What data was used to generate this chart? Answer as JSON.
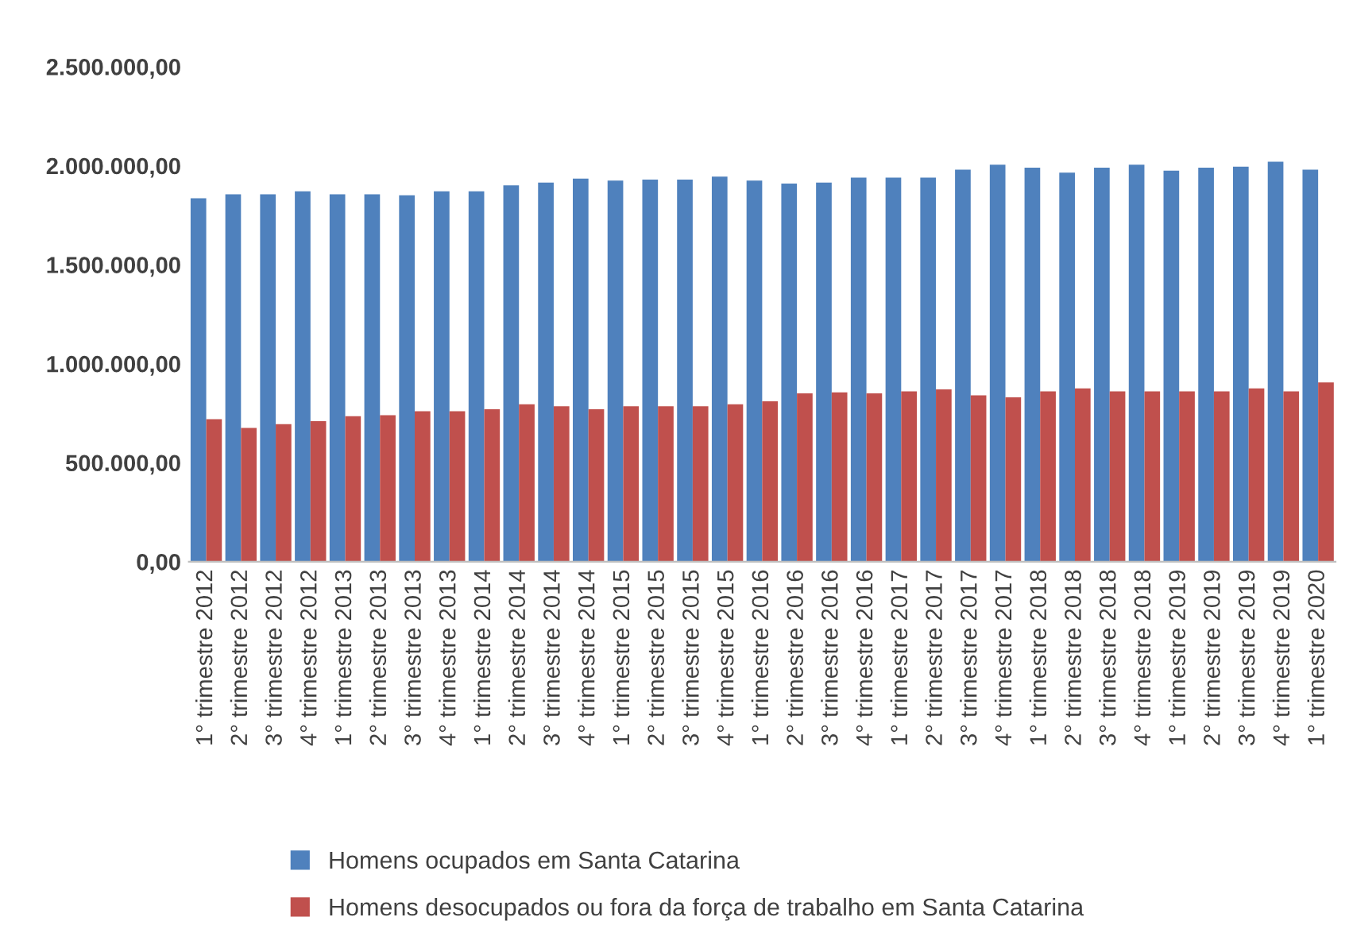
{
  "chart_data": {
    "type": "bar",
    "categories": [
      "1° trimestre 2012",
      "2° trimestre 2012",
      "3° trimestre 2012",
      "4° trimestre 2012",
      "1° trimestre 2013",
      "2° trimestre 2013",
      "3° trimestre 2013",
      "4° trimestre 2013",
      "1° trimestre 2014",
      "2° trimestre 2014",
      "3° trimestre 2014",
      "4° trimestre 2014",
      "1° trimestre 2015",
      "2° trimestre 2015",
      "3° trimestre 2015",
      "4° trimestre 2015",
      "1° trimestre 2016",
      "2° trimestre 2016",
      "3° trimestre 2016",
      "4° trimestre 2016",
      "1° trimestre 2017",
      "2° trimestre 2017",
      "3° trimestre 2017",
      "4° trimestre 2017",
      "1° trimestre 2018",
      "2° trimestre 2018",
      "3° trimestre 2018",
      "4° trimestre 2018",
      "1° trimestre 2019",
      "2° trimestre 2019",
      "3° trimestre 2019",
      "4° trimestre 2019",
      "1° trimestre 2020"
    ],
    "series": [
      {
        "name": "Homens ocupados em Santa Catarina",
        "color": "#4f81bd",
        "values": [
          1835000,
          1855000,
          1855000,
          1870000,
          1855000,
          1855000,
          1850000,
          1870000,
          1870000,
          1900000,
          1915000,
          1935000,
          1925000,
          1930000,
          1930000,
          1945000,
          1925000,
          1910000,
          1915000,
          1940000,
          1940000,
          1940000,
          1980000,
          2005000,
          1990000,
          1965000,
          1990000,
          2005000,
          1975000,
          1990000,
          1995000,
          2020000,
          1980000
        ]
      },
      {
        "name": "Homens desocupados ou fora da força de trabalho em Santa Catarina",
        "color": "#c0504d",
        "values": [
          720000,
          675000,
          695000,
          710000,
          735000,
          740000,
          760000,
          760000,
          770000,
          795000,
          785000,
          770000,
          785000,
          785000,
          785000,
          795000,
          810000,
          850000,
          855000,
          850000,
          860000,
          870000,
          840000,
          830000,
          860000,
          875000,
          860000,
          860000,
          860000,
          860000,
          875000,
          860000,
          905000
        ]
      }
    ],
    "ylim": [
      0,
      2500000
    ],
    "yticks": [
      {
        "value": 0,
        "label": "0,00"
      },
      {
        "value": 500000,
        "label": "500.000,00"
      },
      {
        "value": 1000000,
        "label": "1.000.000,00"
      },
      {
        "value": 1500000,
        "label": "1.500.000,00"
      },
      {
        "value": 2000000,
        "label": "2.000.000,00"
      },
      {
        "value": 2500000,
        "label": "2.500.000,00"
      }
    ],
    "grid": false,
    "legend": "bottom"
  }
}
